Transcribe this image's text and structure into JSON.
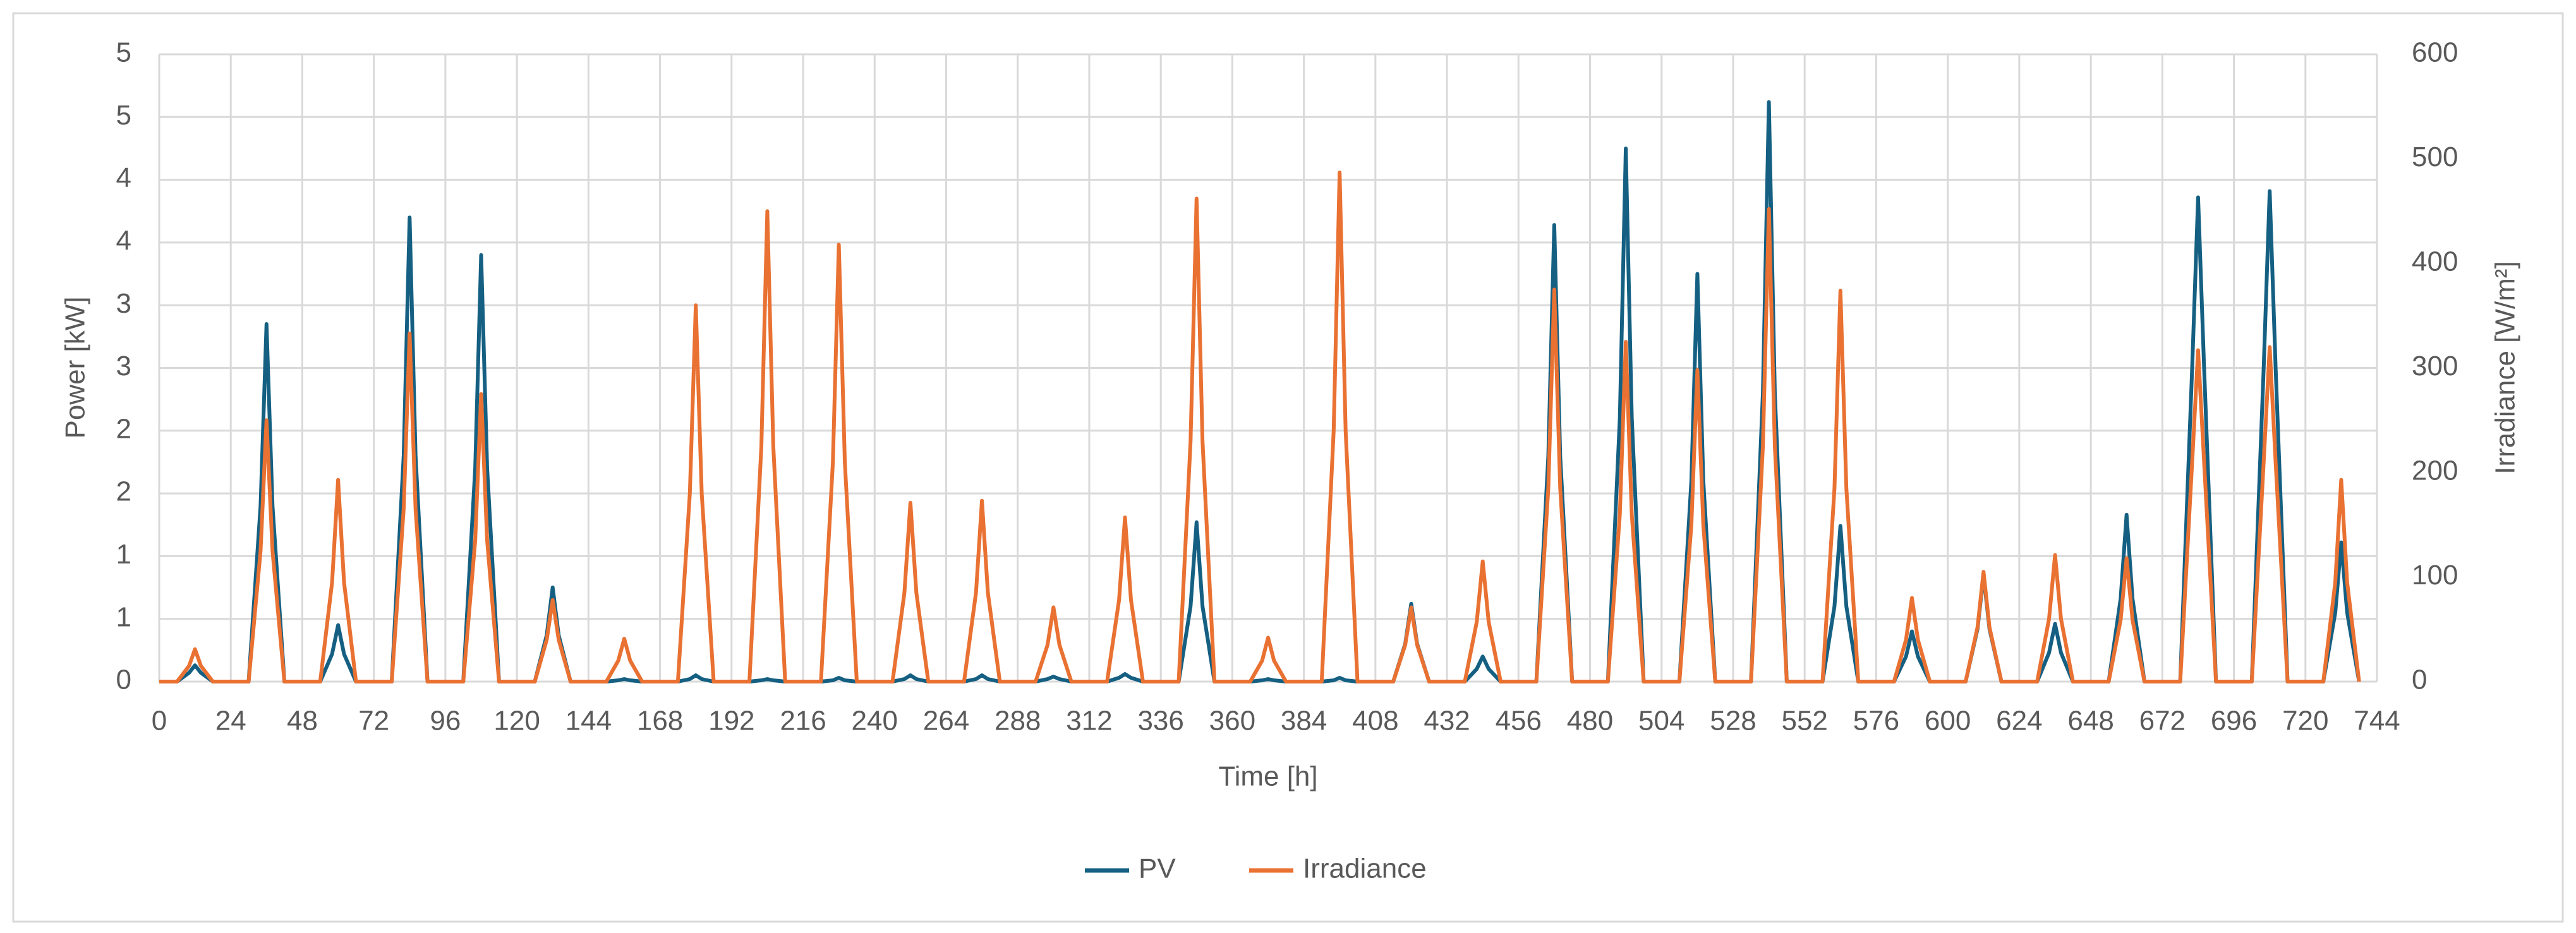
{
  "chart_data": {
    "type": "line",
    "x_label": "Time [h]",
    "y_label": "Power [kW]",
    "y2_label": "Irradiance [W/m²]",
    "grid": true,
    "legend": "bottom",
    "xlim": [
      0,
      744
    ],
    "xticks": [
      0,
      24,
      48,
      72,
      96,
      120,
      144,
      168,
      192,
      216,
      240,
      264,
      288,
      312,
      336,
      360,
      384,
      408,
      432,
      456,
      480,
      504,
      528,
      552,
      576,
      600,
      624,
      648,
      672,
      696,
      720,
      744
    ],
    "ylim": [
      0,
      5
    ],
    "yticks": [
      0,
      {
        "value": 0.5,
        "label": "1"
      },
      {
        "value": 1,
        "label": "1"
      },
      {
        "value": 1.5,
        "label": "2"
      },
      {
        "value": 2,
        "label": "2"
      },
      {
        "value": 2.5,
        "label": "3"
      },
      {
        "value": 3,
        "label": "3"
      },
      {
        "value": 3.5,
        "label": "4"
      },
      {
        "value": 4,
        "label": "4"
      },
      {
        "value": 4.5,
        "label": "5"
      },
      {
        "value": 5,
        "label": "5"
      }
    ],
    "y2lim": [
      0,
      600
    ],
    "y2ticks": [
      0,
      100,
      200,
      300,
      400,
      500,
      600
    ],
    "x": [
      0,
      6,
      10,
      12,
      14,
      18,
      30,
      34,
      36,
      38,
      42,
      54,
      58,
      60,
      62,
      66,
      78,
      82,
      84,
      86,
      90,
      102,
      106,
      108,
      110,
      114,
      126,
      130,
      132,
      134,
      138,
      150,
      154,
      156,
      158,
      162,
      174,
      178,
      180,
      182,
      186,
      198,
      202,
      204,
      206,
      210,
      222,
      226,
      228,
      230,
      234,
      246,
      250,
      252,
      254,
      258,
      270,
      274,
      276,
      278,
      282,
      294,
      298,
      300,
      302,
      306,
      318,
      322,
      324,
      326,
      330,
      342,
      346,
      348,
      350,
      354,
      366,
      370,
      372,
      374,
      378,
      390,
      394,
      396,
      398,
      402,
      414,
      418,
      420,
      422,
      426,
      438,
      442,
      444,
      446,
      450,
      462,
      466,
      468,
      470,
      474,
      486,
      490,
      492,
      494,
      498,
      510,
      514,
      516,
      518,
      522,
      534,
      538,
      540,
      542,
      546,
      558,
      562,
      564,
      566,
      570,
      582,
      586,
      588,
      590,
      594,
      606,
      610,
      612,
      614,
      618,
      630,
      634,
      636,
      638,
      642,
      654,
      658,
      660,
      662,
      666,
      678,
      682,
      684,
      686,
      690,
      702,
      706,
      708,
      710,
      714,
      726,
      730,
      732,
      734,
      738
    ],
    "series": [
      {
        "name": "PV",
        "color": "#156082",
        "axis": "y",
        "values": [
          0,
          0,
          0.07,
          0.13,
          0.07,
          0,
          0,
          1.4,
          2.85,
          1.4,
          0,
          0,
          0.22,
          0.45,
          0.22,
          0,
          0,
          1.8,
          3.7,
          1.8,
          0,
          0,
          1.7,
          3.4,
          1.7,
          0,
          0,
          0.37,
          0.75,
          0.37,
          0,
          0,
          0.01,
          0.02,
          0.01,
          0,
          0,
          0.02,
          0.05,
          0.02,
          0,
          0,
          0.01,
          0.02,
          0.01,
          0,
          0,
          0.01,
          0.03,
          0.01,
          0,
          0,
          0.02,
          0.05,
          0.02,
          0,
          0,
          0.02,
          0.05,
          0.02,
          0,
          0,
          0.02,
          0.04,
          0.02,
          0,
          0,
          0.03,
          0.06,
          0.03,
          0,
          0,
          0.6,
          1.27,
          0.6,
          0,
          0,
          0.01,
          0.02,
          0.01,
          0,
          0,
          0.01,
          0.03,
          0.01,
          0,
          0,
          0.3,
          0.62,
          0.3,
          0,
          0,
          0.1,
          0.2,
          0.1,
          0,
          0,
          1.8,
          3.64,
          1.8,
          0,
          0,
          2.1,
          4.25,
          2.1,
          0,
          0,
          1.6,
          3.25,
          1.6,
          0,
          0,
          2.3,
          4.62,
          2.3,
          0,
          0,
          0.6,
          1.24,
          0.6,
          0,
          0,
          0.2,
          0.4,
          0.2,
          0,
          0,
          0.42,
          0.85,
          0.42,
          0,
          0,
          0.23,
          0.46,
          0.23,
          0,
          0,
          0.66,
          1.33,
          0.66,
          0,
          0,
          2.5,
          3.86,
          2.5,
          0,
          0,
          2.5,
          3.91,
          2.5,
          0,
          0,
          0.55,
          1.11,
          0.55,
          0
        ]
      },
      {
        "name": "Irradiance",
        "color": "#e97132",
        "axis": "y2",
        "values": [
          0,
          0,
          15,
          31,
          15,
          0,
          0,
          125,
          250,
          125,
          0,
          0,
          95,
          193,
          95,
          0,
          0,
          165,
          333,
          165,
          0,
          0,
          135,
          275,
          135,
          0,
          0,
          40,
          78,
          40,
          0,
          0,
          20,
          41,
          20,
          0,
          0,
          180,
          360,
          180,
          0,
          0,
          225,
          450,
          225,
          0,
          0,
          210,
          418,
          210,
          0,
          0,
          85,
          171,
          85,
          0,
          0,
          85,
          173,
          85,
          0,
          0,
          35,
          71,
          35,
          0,
          0,
          78,
          157,
          78,
          0,
          0,
          230,
          462,
          230,
          0,
          0,
          20,
          42,
          20,
          0,
          0,
          240,
          487,
          240,
          0,
          0,
          35,
          71,
          35,
          0,
          0,
          57,
          115,
          57,
          0,
          0,
          185,
          375,
          185,
          0,
          0,
          160,
          325,
          160,
          0,
          0,
          150,
          298,
          150,
          0,
          0,
          225,
          452,
          225,
          0,
          0,
          185,
          374,
          185,
          0,
          0,
          40,
          80,
          40,
          0,
          0,
          52,
          105,
          52,
          0,
          0,
          60,
          121,
          60,
          0,
          0,
          59,
          118,
          59,
          0,
          0,
          210,
          317,
          210,
          0,
          0,
          210,
          320,
          210,
          0,
          0,
          95,
          193,
          95,
          0
        ]
      }
    ]
  }
}
